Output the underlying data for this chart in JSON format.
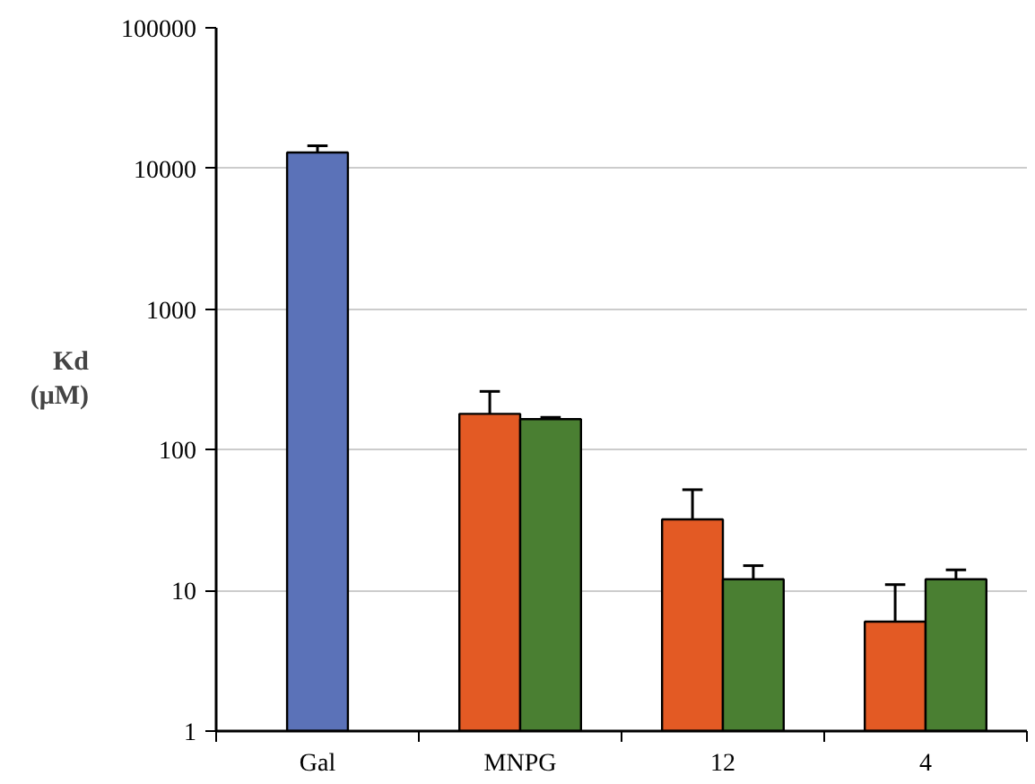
{
  "chart_data": {
    "type": "bar",
    "ylabel": "Kd (μM)",
    "categories": [
      "Gal",
      "MNPG",
      "12",
      "4"
    ],
    "series": [
      {
        "color": "#5b72b8",
        "values": [
          13000,
          null,
          null,
          null
        ],
        "errors": [
          [
            13000,
            14500
          ],
          null,
          null,
          null
        ]
      },
      {
        "color": "#e35a24",
        "values": [
          null,
          180,
          32,
          6
        ],
        "errors": [
          null,
          [
            180,
            260
          ],
          [
            32,
            52
          ],
          [
            6,
            11
          ]
        ]
      },
      {
        "color": "#4a7f32",
        "values": [
          null,
          165,
          12,
          12
        ],
        "errors": [
          null,
          [
            165,
            170
          ],
          [
            12,
            15
          ],
          [
            12,
            14
          ]
        ]
      }
    ],
    "log": "y",
    "ylim": [
      1,
      100000
    ],
    "yticks": [
      1,
      10,
      100,
      1000,
      10000,
      100000
    ],
    "grid": "y"
  }
}
